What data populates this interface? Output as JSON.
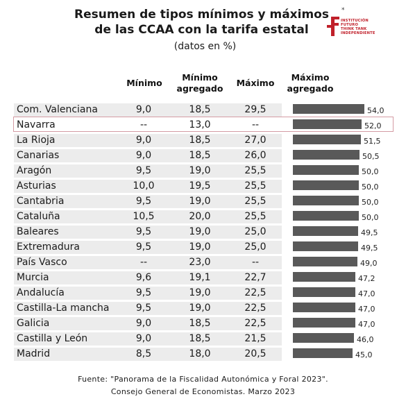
{
  "title_line1": "Resumen de tipos mínimos y máximos",
  "title_line2": "de las CCAA con la tarifa estatal",
  "subtitle": "(datos en %)",
  "logo": {
    "icon": "institucion-futuro-logo",
    "lines": [
      "INSTITUCIÓN",
      "FUTURO",
      "THINK TANK",
      "INDEPENDIENTE"
    ],
    "color": "#c0202a"
  },
  "columns": {
    "minimo": "Mínimo",
    "minimo_agregado": [
      "Mínimo",
      "agregado"
    ],
    "maximo": "Máximo",
    "maximo_agregado": [
      "Máximo",
      "agregado"
    ]
  },
  "chart_data": {
    "type": "table",
    "bar_column": "Máximo agregado",
    "bar_color": "#595959",
    "highlight": "Navarra",
    "rows": [
      {
        "name": "Com. Valenciana",
        "minimo": "9,0",
        "minimo_agregado": "18,5",
        "maximo": "29,5",
        "maximo_agregado": 54.0,
        "maximo_agregado_label": "54,0"
      },
      {
        "name": "Navarra",
        "minimo": "--",
        "minimo_agregado": "13,0",
        "maximo": "--",
        "maximo_agregado": 52.0,
        "maximo_agregado_label": "52,0"
      },
      {
        "name": "La Rioja",
        "minimo": "9,0",
        "minimo_agregado": "18,5",
        "maximo": "27,0",
        "maximo_agregado": 51.5,
        "maximo_agregado_label": "51,5"
      },
      {
        "name": "Canarias",
        "minimo": "9,0",
        "minimo_agregado": "18,5",
        "maximo": "26,0",
        "maximo_agregado": 50.5,
        "maximo_agregado_label": "50,5"
      },
      {
        "name": "Aragón",
        "minimo": "9,5",
        "minimo_agregado": "19,0",
        "maximo": "25,5",
        "maximo_agregado": 50.0,
        "maximo_agregado_label": "50,0"
      },
      {
        "name": "Asturias",
        "minimo": "10,0",
        "minimo_agregado": "19,5",
        "maximo": "25,5",
        "maximo_agregado": 50.0,
        "maximo_agregado_label": "50,0"
      },
      {
        "name": "Cantabria",
        "minimo": "9,5",
        "minimo_agregado": "19,0",
        "maximo": "25,5",
        "maximo_agregado": 50.0,
        "maximo_agregado_label": "50,0"
      },
      {
        "name": "Cataluña",
        "minimo": "10,5",
        "minimo_agregado": "20,0",
        "maximo": "25,5",
        "maximo_agregado": 50.0,
        "maximo_agregado_label": "50,0"
      },
      {
        "name": "Baleares",
        "minimo": "9,5",
        "minimo_agregado": "19,0",
        "maximo": "25,0",
        "maximo_agregado": 49.5,
        "maximo_agregado_label": "49,5"
      },
      {
        "name": "Extremadura",
        "minimo": "9,5",
        "minimo_agregado": "19,0",
        "maximo": "25,0",
        "maximo_agregado": 49.5,
        "maximo_agregado_label": "49,5"
      },
      {
        "name": "País Vasco",
        "minimo": "--",
        "minimo_agregado": "23,0",
        "maximo": "--",
        "maximo_agregado": 49.0,
        "maximo_agregado_label": "49,0"
      },
      {
        "name": "Murcia",
        "minimo": "9,6",
        "minimo_agregado": "19,1",
        "maximo": "22,7",
        "maximo_agregado": 47.2,
        "maximo_agregado_label": "47,2"
      },
      {
        "name": "Andalucía",
        "minimo": "9,5",
        "minimo_agregado": "19,0",
        "maximo": "22,5",
        "maximo_agregado": 47.0,
        "maximo_agregado_label": "47,0"
      },
      {
        "name": "Castilla-La mancha",
        "minimo": "9,5",
        "minimo_agregado": "19,0",
        "maximo": "22,5",
        "maximo_agregado": 47.0,
        "maximo_agregado_label": "47,0"
      },
      {
        "name": "Galicia",
        "minimo": "9,0",
        "minimo_agregado": "18,5",
        "maximo": "22,5",
        "maximo_agregado": 47.0,
        "maximo_agregado_label": "47,0"
      },
      {
        "name": "Castilla y León",
        "minimo": "9,0",
        "minimo_agregado": "18,5",
        "maximo": "21,5",
        "maximo_agregado": 46.0,
        "maximo_agregado_label": "46,0"
      },
      {
        "name": "Madrid",
        "minimo": "8,5",
        "minimo_agregado": "18,0",
        "maximo": "20,5",
        "maximo_agregado": 45.0,
        "maximo_agregado_label": "45,0"
      }
    ]
  },
  "footer_line1": "Fuente: \"Panorama de la Fiscalidad Autonómica y Foral 2023\".",
  "footer_line2": "Consejo General de Economistas. Marzo 2023"
}
